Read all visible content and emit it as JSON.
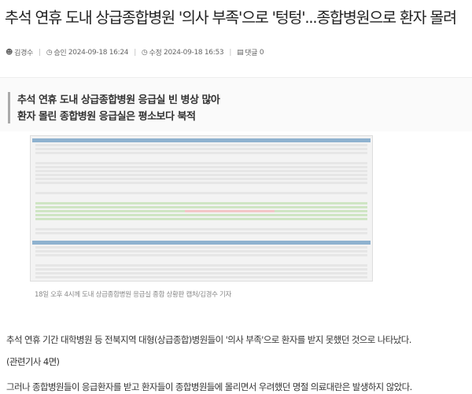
{
  "article": {
    "title": "추석 연휴 도내 상급종합병원 '의사 부족'으로 '텅텅'...종합병원으로 환자 몰려",
    "meta": {
      "author": "김경수",
      "approved_label": "승인",
      "approved_time": "2024-09-18 16:24",
      "modified_label": "수정",
      "modified_time": "2024-09-18 16:53",
      "comments_label": "댓글",
      "comments_count": "0"
    },
    "subtitle": [
      "추석 연휴 도내 상급종합병원 응급실 빈 병상 많아",
      "환자 몰린 종합병원 응급실은 평소보다 북적"
    ],
    "image_caption": "18일 오후 4시께 도내 상급종합병원 응급실 종합 상황판 캡처/김경수 기자",
    "paragraphs": [
      "추석 연휴 기간 대학병원 등 전북지역 대형(상급종합)병원들이 '의사 부족'으로 환자를 받지 못했던 것으로 나타났다.",
      "(관련기사 4면)",
      "그러나 종합병원들이 응급환자를 받고 환자들이 종합병원들에 몰리면서 우려했던 명절 의료대란은 발생하지 않았다."
    ]
  },
  "icons": {
    "author": "person-icon",
    "time": "clock-icon",
    "comments": "comment-icon"
  },
  "colors": {
    "image_header": "#8fb2cf",
    "available": "#cfe5c4",
    "full": "#f3c7c7"
  }
}
